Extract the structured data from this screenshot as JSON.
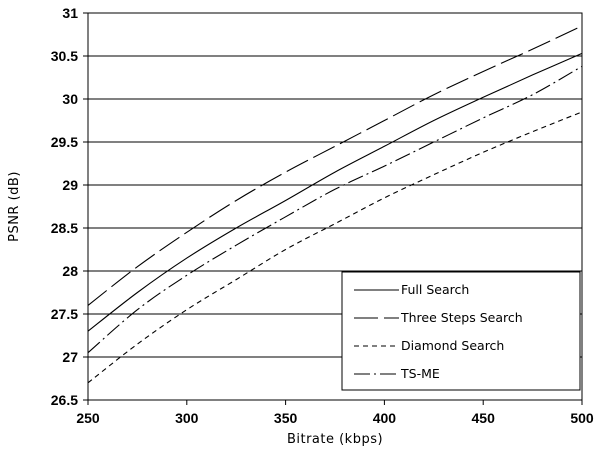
{
  "chart_data": {
    "type": "line",
    "title": "",
    "xlabel": "Bitrate (kbps)",
    "ylabel": "PSNR (dB)",
    "xlim": [
      250,
      500
    ],
    "ylim": [
      26.5,
      31
    ],
    "xticks": [
      "250",
      "300",
      "350",
      "400",
      "450",
      "500"
    ],
    "yticks": [
      "26.5",
      "27",
      "27.5",
      "28",
      "28.5",
      "29",
      "29.5",
      "30",
      "30.5",
      "31"
    ],
    "grid": "horizontal",
    "legend_position": "bottom-right",
    "series": [
      {
        "name": "Full Search",
        "dash": "solid",
        "x": [
          250,
          275,
          300,
          325,
          350,
          375,
          400,
          425,
          450,
          475,
          500
        ],
        "y": [
          27.3,
          27.75,
          28.15,
          28.5,
          28.82,
          29.15,
          29.45,
          29.75,
          30.02,
          30.28,
          30.53
        ]
      },
      {
        "name": "Three Steps Search",
        "dash": "long-dash",
        "x": [
          250,
          275,
          300,
          325,
          350,
          375,
          400,
          425,
          450,
          475,
          500
        ],
        "y": [
          27.6,
          28.05,
          28.45,
          28.82,
          29.15,
          29.45,
          29.75,
          30.05,
          30.32,
          30.58,
          30.85
        ]
      },
      {
        "name": "Diamond Search",
        "dash": "short-dash",
        "x": [
          250,
          275,
          300,
          325,
          350,
          375,
          400,
          425,
          450,
          475,
          500
        ],
        "y": [
          26.7,
          27.15,
          27.55,
          27.9,
          28.25,
          28.55,
          28.85,
          29.12,
          29.38,
          29.62,
          29.85
        ]
      },
      {
        "name": "TS-ME",
        "dash": "dash-dot",
        "x": [
          250,
          275,
          300,
          325,
          350,
          375,
          400,
          425,
          450,
          475,
          500
        ],
        "y": [
          27.05,
          27.55,
          27.95,
          28.3,
          28.63,
          28.95,
          29.22,
          29.5,
          29.78,
          30.05,
          30.38
        ]
      }
    ]
  }
}
